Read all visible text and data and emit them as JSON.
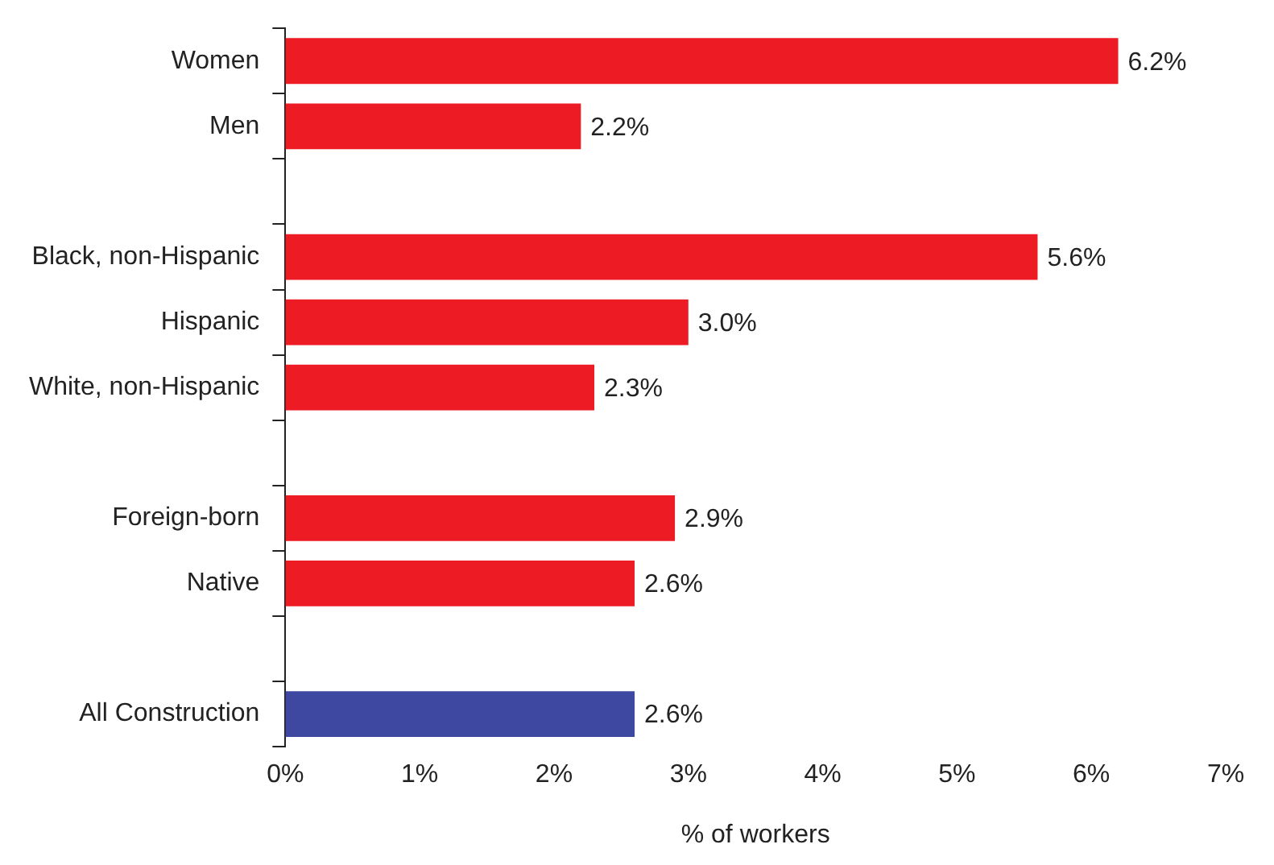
{
  "chart_data": {
    "type": "bar",
    "orientation": "horizontal",
    "xlabel": "% of workers",
    "categories": [
      "Women",
      "Men",
      null,
      "Black, non-Hispanic",
      "Hispanic",
      "White, non-Hispanic",
      null,
      "Foreign-born",
      "Native",
      null,
      "All Construction"
    ],
    "values": [
      6.2,
      2.2,
      null,
      5.6,
      3.0,
      2.3,
      null,
      2.9,
      2.6,
      null,
      2.6
    ],
    "colors": [
      "#ed1c24",
      "#ed1c24",
      "#ed1c24",
      "#ed1c24",
      "#ed1c24",
      "#ed1c24",
      "#ed1c24",
      "#ed1c24",
      "#ed1c24",
      "#ed1c24",
      "#3f48a0"
    ],
    "value_labels": [
      "6.2%",
      "2.2%",
      null,
      "5.6%",
      "3.0%",
      "2.3%",
      null,
      "2.9%",
      "2.6%",
      null,
      "2.6%"
    ],
    "xlim": [
      0,
      7
    ],
    "xticks": [
      {
        "value": 0,
        "label": "0%"
      },
      {
        "value": 1,
        "label": "1%"
      },
      {
        "value": 2,
        "label": "2%"
      },
      {
        "value": 3,
        "label": "3%"
      },
      {
        "value": 4,
        "label": "4%"
      },
      {
        "value": 5,
        "label": "5%"
      },
      {
        "value": 6,
        "label": "6%"
      },
      {
        "value": 7,
        "label": "7%"
      }
    ],
    "grid": false,
    "legend": false
  }
}
